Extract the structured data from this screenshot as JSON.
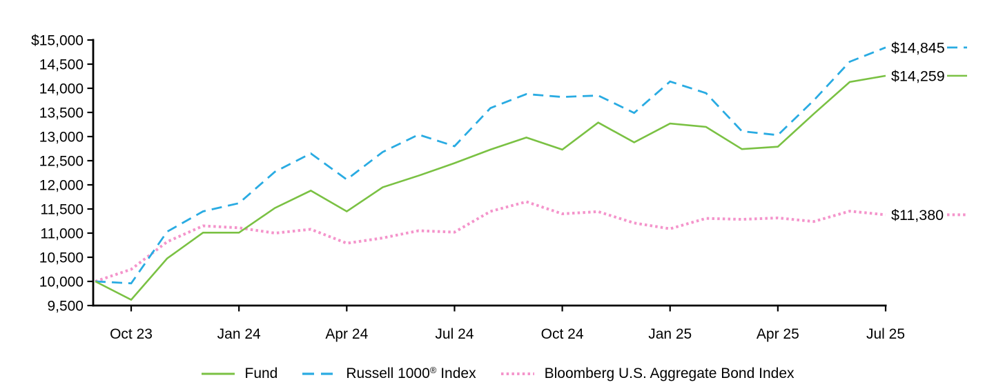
{
  "chart_data": {
    "type": "line",
    "title": "",
    "currency_prefix": "$",
    "grid": false,
    "legend_position": "bottom-center",
    "ylim": [
      9500,
      15000
    ],
    "x": [
      "Sep 23",
      "Oct 23",
      "Nov 23",
      "Dec 23",
      "Jan 24",
      "Feb 24",
      "Mar 24",
      "Apr 24",
      "May 24",
      "Jun 24",
      "Jul 24",
      "Aug 24",
      "Sep 24",
      "Oct 24",
      "Nov 24",
      "Dec 24",
      "Jan 25",
      "Feb 25",
      "Mar 25",
      "Apr 25",
      "May 25",
      "Jun 25",
      "Jul 25"
    ],
    "x_axis_tick_labels": [
      "Oct 23",
      "Jan 24",
      "Apr 24",
      "Jul 24",
      "Oct 24",
      "Jan 25",
      "Apr 25",
      "Jul 25"
    ],
    "x_axis_tick_indices": [
      1,
      4,
      7,
      10,
      13,
      16,
      19,
      22
    ],
    "y_axis_tick_labels": [
      "$15,000",
      "14,500",
      "14,000",
      "13,500",
      "13,000",
      "12,500",
      "12,000",
      "11,500",
      "11,000",
      "10,500",
      "10,000",
      "9,500"
    ],
    "y_axis_tick_values": [
      15000,
      14500,
      14000,
      13500,
      13000,
      12500,
      12000,
      11500,
      11000,
      10500,
      10000,
      9500
    ],
    "series": [
      {
        "name": "Fund",
        "label_parts": [
          {
            "text": "Fund"
          }
        ],
        "color": "#7AC143",
        "line_style": "solid",
        "end_label": "$14,259",
        "values": [
          10000,
          9620,
          10475,
          11010,
          11010,
          11520,
          11880,
          11450,
          11950,
          12190,
          12450,
          12730,
          12980,
          12730,
          13290,
          12880,
          13270,
          13200,
          12740,
          12790,
          13470,
          14130,
          14259
        ]
      },
      {
        "name": "Russell 1000 Index",
        "label_parts": [
          {
            "text": "Russell 1000"
          },
          {
            "text": "®",
            "sup": true
          },
          {
            "text": " Index"
          }
        ],
        "color": "#29ABE2",
        "line_style": "dashed",
        "end_label": "$14,845",
        "values": [
          10000,
          9960,
          11030,
          11450,
          11620,
          12270,
          12650,
          12110,
          12680,
          13040,
          12800,
          13590,
          13880,
          13820,
          13850,
          13490,
          14140,
          13900,
          13110,
          13030,
          13750,
          14550,
          14845
        ]
      },
      {
        "name": "Bloomberg U.S. Aggregate Bond Index",
        "label_parts": [
          {
            "text": "Bloomberg U.S. Aggregate Bond Index"
          }
        ],
        "color": "#F494CB",
        "line_style": "dotted",
        "end_label": "$11,380",
        "values": [
          10000,
          10250,
          10820,
          11150,
          11110,
          11000,
          11080,
          10790,
          10900,
          11050,
          11020,
          11450,
          11650,
          11400,
          11445,
          11210,
          11090,
          11305,
          11285,
          11315,
          11240,
          11455,
          11380
        ]
      }
    ]
  }
}
